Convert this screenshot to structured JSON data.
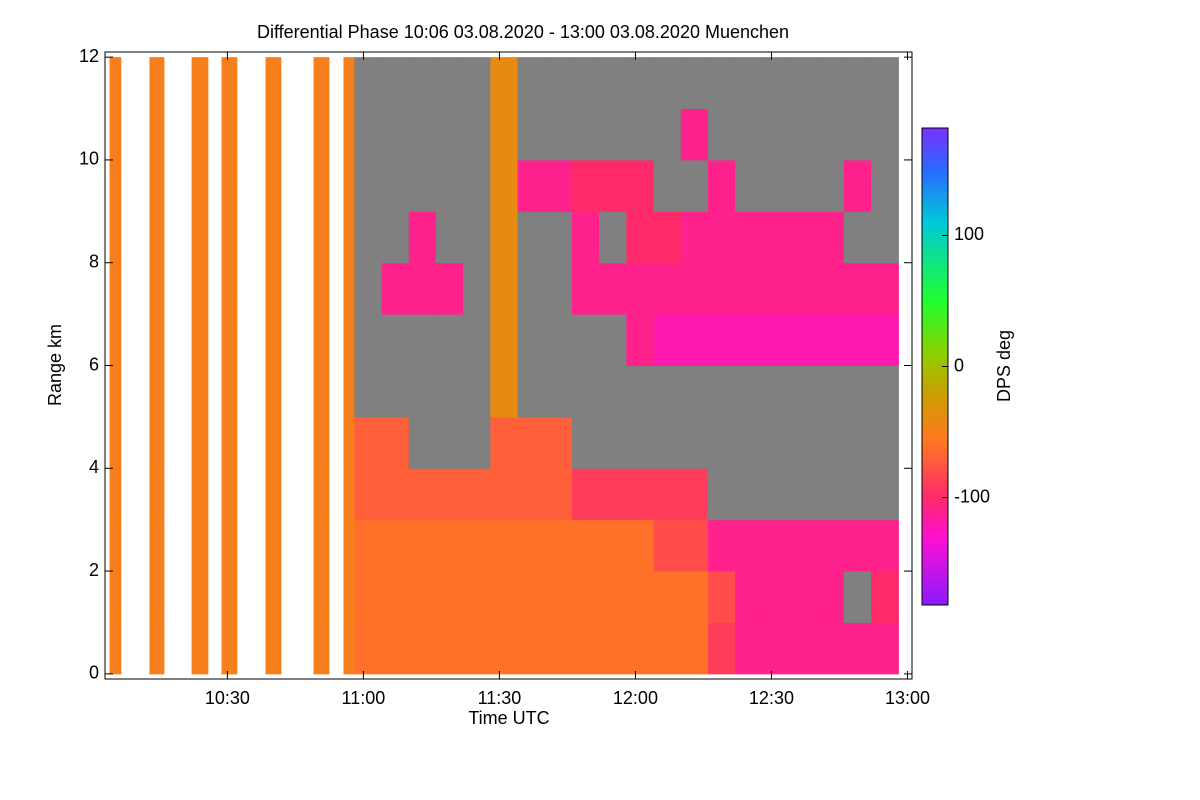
{
  "chart_data": {
    "type": "heatmap",
    "title": "Differential Phase   10:06 03.08.2020 - 13:00 03.08.2020 Muenchen",
    "x_label": "Time UTC",
    "y_label": "Range km",
    "colorbar_label": "DPS deg",
    "xlim": [
      603,
      781
    ],
    "xticks": [
      {
        "value": 630,
        "label": "10:30"
      },
      {
        "value": 660,
        "label": "11:00"
      },
      {
        "value": 690,
        "label": "11:30"
      },
      {
        "value": 720,
        "label": "12:00"
      },
      {
        "value": 750,
        "label": "12:30"
      },
      {
        "value": 780,
        "label": "13:00"
      }
    ],
    "ylim": [
      -0.1,
      12.1
    ],
    "yticks": [
      0,
      2,
      4,
      6,
      8,
      10,
      12
    ],
    "clim": [
      -182,
      182
    ],
    "cticks": [
      -100,
      0,
      100
    ],
    "colorscale": [
      [
        -182,
        "#8a1aff"
      ],
      [
        -130,
        "#ff10d0"
      ],
      [
        -100,
        "#ff2a6a"
      ],
      [
        -55,
        "#ff7a20"
      ],
      [
        -20,
        "#c8a000"
      ],
      [
        10,
        "#8cd000"
      ],
      [
        50,
        "#20ff30"
      ],
      [
        110,
        "#00c8d8"
      ],
      [
        150,
        "#2a6aff"
      ],
      [
        182,
        "#7a30ff"
      ]
    ],
    "null_color": "#808080",
    "x": [
      604,
      610,
      616,
      622,
      628,
      634,
      640,
      646,
      652,
      658,
      664,
      670,
      676,
      682,
      688,
      694,
      700,
      706,
      712,
      718,
      724,
      730,
      736,
      742,
      748,
      754,
      760,
      766,
      772,
      778
    ],
    "y": [
      0,
      1,
      2,
      3,
      4,
      5,
      6,
      7,
      8,
      9,
      10,
      11,
      12
    ],
    "z": [
      [
        -50,
        -50,
        -50,
        -50,
        -50,
        -50,
        -50,
        -50,
        -50,
        -60,
        -60,
        -60,
        -60,
        -60,
        -60,
        -60,
        -60,
        -60,
        -60,
        -60,
        -60,
        -60,
        -90,
        -110,
        -110,
        -110,
        -110,
        -110,
        -110
      ],
      [
        -50,
        -50,
        -50,
        -50,
        -50,
        -50,
        -50,
        -50,
        -50,
        -60,
        -60,
        -60,
        -60,
        -60,
        -60,
        -60,
        -60,
        -60,
        -60,
        -60,
        -60,
        -60,
        -80,
        -110,
        -110,
        -110,
        -110,
        null,
        -100
      ],
      [
        -50,
        -50,
        -50,
        -50,
        -50,
        -50,
        -50,
        -50,
        -50,
        -60,
        -60,
        -60,
        -60,
        -60,
        -60,
        -60,
        -60,
        -60,
        -60,
        -60,
        -80,
        -80,
        -110,
        -110,
        -110,
        -110,
        -110,
        -110,
        -110
      ],
      [
        -50,
        -50,
        -50,
        -50,
        -50,
        -50,
        -50,
        -50,
        -50,
        -70,
        -70,
        -70,
        -70,
        -70,
        -70,
        -70,
        -70,
        -90,
        -90,
        -90,
        -90,
        -90,
        null,
        null,
        null,
        null,
        null,
        null,
        null
      ],
      [
        -50,
        -50,
        -50,
        -50,
        -50,
        -50,
        -50,
        -50,
        -50,
        -70,
        -70,
        null,
        null,
        null,
        -70,
        -70,
        -70,
        null,
        null,
        null,
        null,
        null,
        null,
        null,
        null,
        null,
        null,
        null,
        null
      ],
      [
        -50,
        -50,
        -50,
        -50,
        -50,
        -50,
        -50,
        -50,
        -50,
        null,
        null,
        null,
        null,
        null,
        -40,
        null,
        null,
        null,
        null,
        null,
        null,
        null,
        null,
        null,
        null,
        null,
        null,
        null,
        null
      ],
      [
        -50,
        -50,
        -50,
        -50,
        -50,
        -50,
        -50,
        -50,
        -50,
        null,
        null,
        null,
        null,
        null,
        -40,
        null,
        null,
        null,
        null,
        -110,
        -120,
        -120,
        -120,
        -120,
        -120,
        -120,
        -120,
        -120,
        -120
      ],
      [
        -50,
        -50,
        -50,
        -50,
        -50,
        -50,
        -50,
        -50,
        -50,
        null,
        -110,
        -110,
        -110,
        null,
        -40,
        null,
        null,
        -110,
        -110,
        -110,
        -110,
        -110,
        -110,
        -110,
        -110,
        -110,
        -110,
        -110,
        -110
      ],
      [
        -50,
        -50,
        -50,
        -50,
        -50,
        -50,
        -50,
        -50,
        -50,
        null,
        null,
        -110,
        null,
        null,
        -40,
        null,
        null,
        -110,
        null,
        -100,
        -100,
        -110,
        -110,
        -110,
        -110,
        -110,
        -110,
        null,
        null
      ],
      [
        -50,
        -50,
        -50,
        -50,
        -50,
        -50,
        -50,
        -50,
        -50,
        null,
        null,
        null,
        null,
        null,
        -40,
        -110,
        -110,
        -100,
        -100,
        -100,
        null,
        null,
        -110,
        null,
        null,
        null,
        null,
        -110,
        null
      ],
      [
        -50,
        -50,
        -50,
        -50,
        -50,
        -50,
        -50,
        -50,
        -50,
        null,
        null,
        null,
        null,
        null,
        -40,
        null,
        null,
        null,
        null,
        null,
        null,
        -110,
        null,
        null,
        null,
        null,
        null,
        null,
        null
      ],
      [
        -50,
        -50,
        -50,
        -50,
        -50,
        -50,
        -50,
        -50,
        -50,
        null,
        null,
        null,
        null,
        null,
        -40,
        null,
        null,
        null,
        null,
        null,
        null,
        null,
        null,
        null,
        null,
        null,
        null,
        null,
        null
      ]
    ],
    "gaps": [
      [
        606.6,
        612.8
      ],
      [
        616.1,
        622.1
      ],
      [
        625.8,
        628.7
      ],
      [
        632.2,
        638.4
      ],
      [
        641.9,
        649
      ],
      [
        652.5,
        655.6
      ]
    ]
  }
}
